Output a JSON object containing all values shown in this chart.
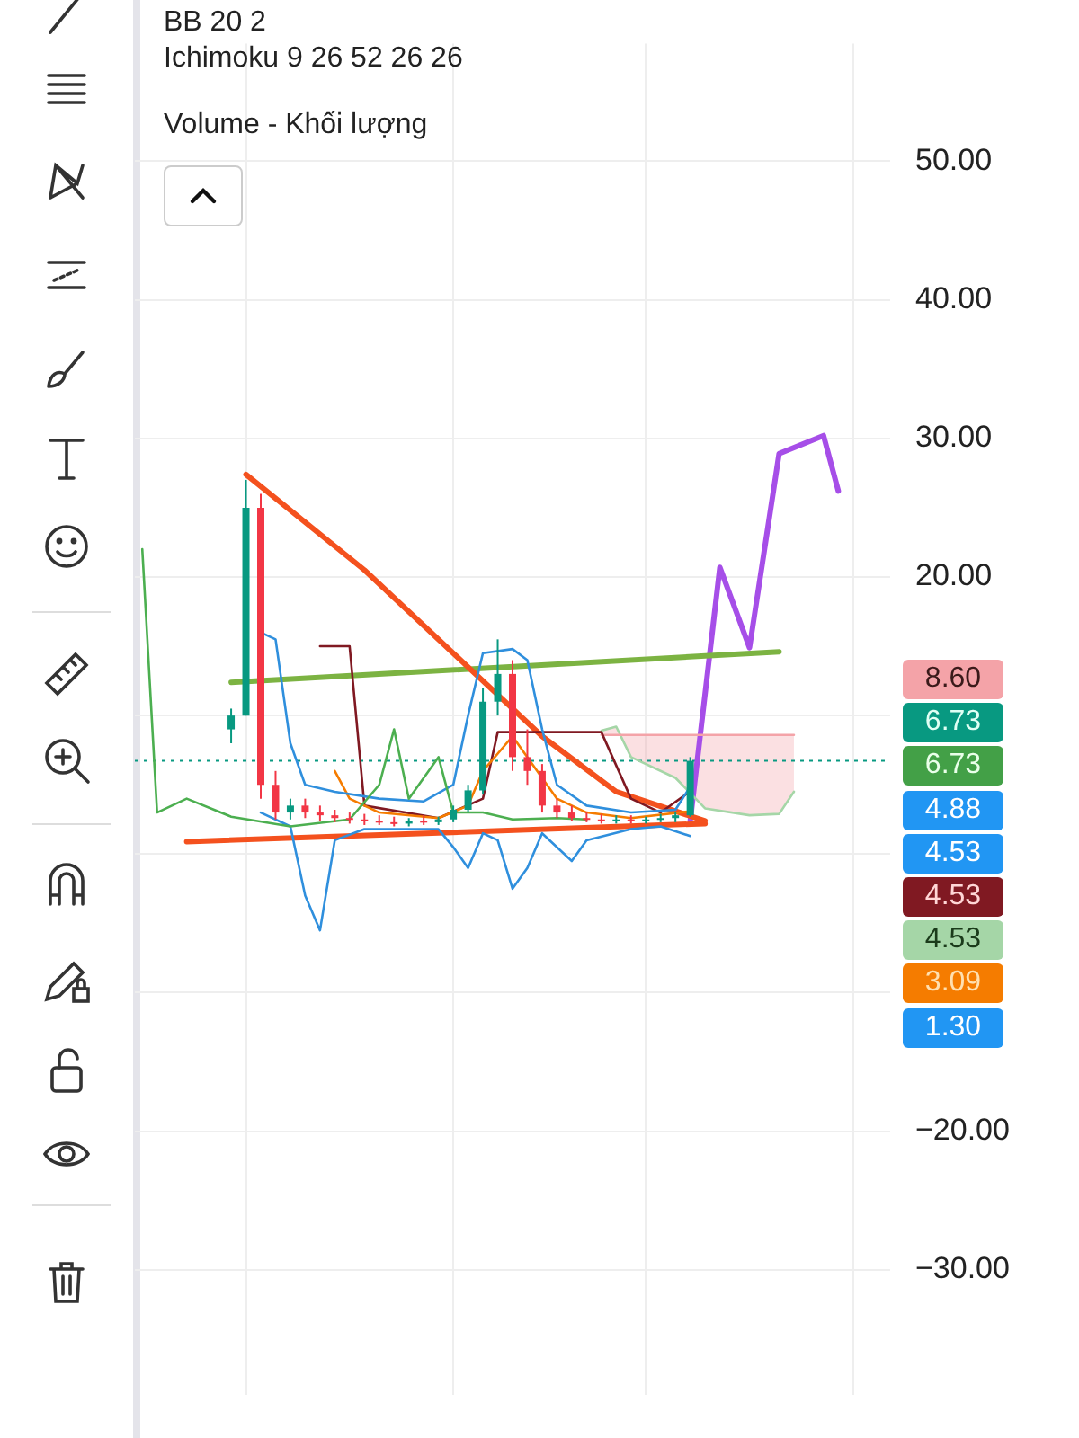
{
  "chart_data": {
    "type": "candlestick",
    "categories": [
      null,
      null,
      null,
      null,
      null,
      null,
      null,
      null,
      null,
      null,
      null,
      null,
      null,
      null,
      null,
      null,
      null,
      null,
      null,
      null,
      null,
      null,
      null,
      null,
      null,
      null,
      null,
      null,
      null,
      null,
      null,
      null,
      null,
      null,
      null,
      null,
      null,
      null,
      null,
      null,
      null,
      null,
      null,
      null,
      null,
      null,
      null,
      null,
      null,
      null,
      null
    ],
    "ohlc": [
      null,
      null,
      null,
      null,
      null,
      null,
      [
        9,
        10.5,
        8,
        10
      ],
      [
        10,
        27,
        10,
        25
      ],
      [
        25,
        26,
        4,
        5
      ],
      [
        5,
        6,
        2.5,
        3
      ],
      [
        3,
        4,
        2.5,
        3.5
      ],
      [
        3.5,
        4,
        2.6,
        3
      ],
      [
        3,
        3.5,
        2.4,
        2.8
      ],
      [
        2.8,
        3.2,
        2.3,
        2.6
      ],
      [
        2.6,
        3,
        2.2,
        2.5
      ],
      [
        2.5,
        2.9,
        2.1,
        2.4
      ],
      [
        2.4,
        2.8,
        2.1,
        2.3
      ],
      [
        2.3,
        2.7,
        2,
        2.2
      ],
      [
        2.2,
        2.6,
        2,
        2.4
      ],
      [
        2.4,
        2.8,
        2.1,
        2.3
      ],
      [
        2.3,
        2.7,
        2.1,
        2.5
      ],
      [
        2.5,
        3.5,
        2.3,
        3.2
      ],
      [
        3.2,
        5,
        3,
        4.6
      ],
      [
        4.6,
        12,
        4.3,
        11
      ],
      [
        11,
        15.5,
        10,
        13
      ],
      [
        13,
        14,
        6,
        7
      ],
      [
        7,
        9,
        5,
        6
      ],
      [
        6,
        6.5,
        3,
        3.5
      ],
      [
        3.5,
        4,
        2.6,
        3
      ],
      [
        3,
        3.5,
        2.4,
        2.6
      ],
      [
        2.6,
        3,
        2.3,
        2.5
      ],
      [
        2.5,
        2.9,
        2.2,
        2.4
      ],
      [
        2.4,
        2.8,
        2.2,
        2.5
      ],
      [
        2.5,
        2.8,
        2.2,
        2.4
      ],
      [
        2.4,
        2.7,
        2.2,
        2.5
      ],
      [
        2.5,
        2.9,
        2.3,
        2.6
      ],
      [
        2.6,
        3,
        2.3,
        2.8
      ],
      [
        2.8,
        7,
        2.7,
        6.73
      ],
      null,
      null,
      null,
      null,
      null,
      null,
      null,
      null,
      null,
      null,
      null,
      null,
      null
    ],
    "series": [
      {
        "type": "line",
        "color": "#4caf50",
        "values": [
          22,
          3,
          null,
          4,
          null,
          null,
          2.7,
          null,
          null,
          null,
          2,
          null,
          null,
          null,
          2.5,
          null,
          5,
          9,
          4,
          null,
          7,
          3,
          null,
          3,
          null,
          2.5,
          null,
          null,
          2.6,
          null,
          2.5,
          null,
          null,
          null,
          null,
          null,
          null,
          null,
          null,
          null,
          null,
          null,
          null,
          null,
          null,
          null,
          null,
          null,
          null,
          null,
          null
        ]
      },
      {
        "type": "line",
        "color": "#2f8fdd",
        "values": [
          null,
          null,
          null,
          null,
          null,
          null,
          null,
          null,
          16,
          15.5,
          8,
          5,
          null,
          4.5,
          null,
          null,
          4,
          null,
          null,
          3.8,
          null,
          5,
          10,
          14.5,
          null,
          14.8,
          14,
          9,
          5,
          null,
          3.5,
          null,
          null,
          3,
          null,
          null,
          3.2,
          4.88,
          null,
          null,
          null,
          null,
          null,
          null,
          null,
          null,
          null,
          null,
          null,
          null,
          null
        ]
      },
      {
        "type": "line",
        "color": "#2f8fdd",
        "values": [
          null,
          null,
          null,
          null,
          null,
          null,
          null,
          null,
          3,
          null,
          2,
          -3,
          -5.5,
          1,
          null,
          1.8,
          null,
          null,
          null,
          null,
          1.8,
          0.5,
          -1,
          1.5,
          1,
          -2.5,
          -1,
          1.5,
          null,
          -0.5,
          1,
          null,
          null,
          1.8,
          null,
          2,
          null,
          1.3,
          null,
          null,
          null,
          null,
          null,
          null,
          null,
          null,
          null,
          null,
          null,
          null,
          null
        ]
      },
      {
        "type": "line",
        "color": "#f57c00",
        "values": [
          null,
          null,
          null,
          null,
          null,
          null,
          null,
          null,
          null,
          null,
          null,
          null,
          null,
          6,
          4,
          null,
          3,
          null,
          null,
          null,
          2.6,
          null,
          3.5,
          6,
          null,
          8.5,
          7,
          null,
          4,
          null,
          3,
          null,
          null,
          2.6,
          null,
          null,
          null,
          3.09,
          null,
          null,
          null,
          null,
          null,
          null,
          null,
          null,
          null,
          null,
          null,
          null,
          null
        ]
      },
      {
        "type": "line",
        "color": "#801922",
        "values": [
          null,
          null,
          null,
          null,
          null,
          null,
          null,
          null,
          null,
          null,
          null,
          null,
          15,
          null,
          15,
          3.5,
          null,
          null,
          null,
          null,
          2.6,
          null,
          null,
          4,
          8.8,
          null,
          null,
          null,
          null,
          null,
          null,
          8.8,
          null,
          4,
          null,
          3,
          null,
          4.53,
          null,
          null,
          null,
          null,
          null,
          null,
          null,
          null,
          null,
          null,
          null,
          null,
          null
        ]
      },
      {
        "type": "line",
        "color": "#f4a3a8",
        "values": [
          null,
          null,
          null,
          null,
          null,
          null,
          null,
          null,
          null,
          null,
          null,
          null,
          null,
          null,
          null,
          null,
          null,
          null,
          null,
          null,
          null,
          null,
          null,
          null,
          null,
          null,
          null,
          null,
          null,
          null,
          null,
          8.6,
          8.6,
          8.6,
          null,
          null,
          8.6,
          null,
          8.6,
          null,
          null,
          8.6,
          null,
          8.6,
          8.6,
          null,
          null,
          null,
          null,
          null,
          null
        ],
        "lower": [
          null,
          null,
          null,
          null,
          null,
          null,
          null,
          null,
          null,
          null,
          null,
          null,
          null,
          null,
          null,
          null,
          null,
          null,
          null,
          null,
          null,
          null,
          null,
          null,
          null,
          null,
          null,
          null,
          null,
          null,
          null,
          8.9,
          9.2,
          7,
          null,
          null,
          5.5,
          null,
          3.3,
          null,
          null,
          2.8,
          null,
          2.9,
          4.5,
          null,
          null,
          null,
          null,
          null,
          null
        ],
        "upper": [
          null,
          null,
          null,
          null,
          null,
          null,
          null,
          null,
          null,
          null,
          null,
          null,
          null,
          null,
          null,
          null,
          null,
          null,
          null,
          null,
          null,
          null,
          null,
          null,
          null,
          null,
          null,
          null,
          null,
          null,
          null,
          8.6,
          8.6,
          8.6,
          null,
          null,
          8.6,
          null,
          8.6,
          null,
          null,
          8.6,
          null,
          8.6,
          8.6,
          null,
          null,
          null,
          null,
          null,
          null
        ]
      },
      {
        "type": "line",
        "color": "#a5d6a7",
        "values": [
          null,
          null,
          null,
          null,
          null,
          null,
          null,
          null,
          null,
          null,
          null,
          null,
          null,
          null,
          null,
          null,
          null,
          null,
          null,
          null,
          null,
          null,
          null,
          null,
          null,
          null,
          null,
          null,
          null,
          null,
          null,
          8.9,
          9.2,
          7,
          null,
          null,
          5.5,
          null,
          3.3,
          null,
          null,
          2.8,
          null,
          2.9,
          4.5,
          null,
          null,
          null,
          null,
          null,
          null
        ]
      },
      {
        "type": "line",
        "color": "#f4511e",
        "values": [
          null,
          null,
          null,
          null,
          null,
          null,
          null,
          27.4,
          null,
          null,
          null,
          null,
          null,
          null,
          null,
          20.5,
          null,
          null,
          null,
          null,
          null,
          null,
          13.5,
          null,
          null,
          null,
          null,
          8.5,
          null,
          null,
          null,
          null,
          4.5,
          null,
          null,
          null,
          null,
          null,
          2.4,
          null,
          null,
          null,
          null,
          null,
          null,
          null,
          null,
          null,
          null,
          null,
          null
        ]
      },
      {
        "type": "line",
        "color": "#f4511e",
        "values": [
          null,
          null,
          null,
          0.9,
          null,
          null,
          null,
          null,
          null,
          null,
          null,
          null,
          null,
          null,
          null,
          null,
          null,
          null,
          null,
          null,
          null,
          null,
          null,
          null,
          null,
          null,
          null,
          null,
          null,
          null,
          null,
          null,
          null,
          null,
          null,
          null,
          null,
          null,
          2.2,
          null,
          null,
          null,
          null,
          null,
          null,
          null,
          null,
          null,
          null,
          null,
          null
        ]
      },
      {
        "type": "line",
        "color": "#7cb342",
        "values": [
          null,
          null,
          null,
          null,
          null,
          null,
          12.4,
          null,
          null,
          null,
          null,
          null,
          null,
          null,
          null,
          null,
          null,
          null,
          null,
          null,
          null,
          null,
          null,
          null,
          null,
          null,
          null,
          null,
          null,
          null,
          null,
          null,
          null,
          null,
          null,
          null,
          null,
          null,
          null,
          null,
          null,
          null,
          null,
          14.6,
          null,
          null,
          null,
          null,
          null,
          null,
          null
        ]
      },
      {
        "type": "line",
        "color": "#a64ee8",
        "values": [
          null,
          null,
          null,
          null,
          null,
          null,
          null,
          null,
          null,
          null,
          null,
          null,
          null,
          null,
          null,
          null,
          null,
          null,
          null,
          null,
          null,
          null,
          null,
          null,
          null,
          null,
          null,
          null,
          null,
          null,
          null,
          null,
          null,
          null,
          null,
          null,
          null,
          2.4,
          null,
          20.7,
          null,
          14.9,
          null,
          28.9,
          null,
          null,
          30.2,
          26.2,
          null,
          null,
          null
        ]
      }
    ],
    "ylim": [
      -39,
      58.5
    ],
    "yticks": [
      {
        "value": 50,
        "label": "50.00"
      },
      {
        "value": 40,
        "label": "40.00"
      },
      {
        "value": 30,
        "label": "30.00"
      },
      {
        "value": 20,
        "label": "20.00"
      },
      {
        "value": 10,
        "label": null
      },
      {
        "value": 0,
        "label": null
      },
      {
        "value": -10,
        "label": null
      },
      {
        "value": -20,
        "label": "−20.00"
      },
      {
        "value": -30,
        "label": "−30.00"
      }
    ],
    "ref_lines": [
      {
        "axis": "y",
        "value": 6.73,
        "label": "6.73",
        "color": "#089981",
        "line_style": "dotted"
      }
    ],
    "grid": true,
    "tick_labels": "y",
    "marker": "none",
    "annotations": [
      "BB 20 2",
      "Ichimoku 9 26 52 26 26",
      "Volume - Khối lượng",
      "8.60",
      "6.73",
      "4.88",
      "4.53",
      "4.53",
      "4.53",
      "3.09",
      "1.30"
    ]
  }
}
